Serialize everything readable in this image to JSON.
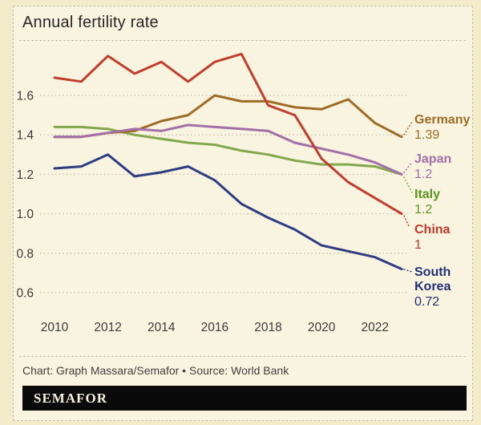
{
  "title": "Annual fertility rate",
  "credit": "Chart: Graph Massara/Semafor • Source: World Bank",
  "logo_text": "SEMAFOR",
  "colors": {
    "outer_background": "#f3ebc9",
    "card_background": "#f9f4e0",
    "border": "#c6c0a6",
    "grid": "#c3bda7",
    "title_text": "#262626",
    "muted_text": "#3f3f3f",
    "logo_bar": "#0a0a0a",
    "logo_text": "#f7f2de"
  },
  "chart_data": {
    "type": "line",
    "title": "Annual fertility rate",
    "x": [
      2010,
      2011,
      2012,
      2013,
      2014,
      2015,
      2016,
      2017,
      2018,
      2019,
      2020,
      2021,
      2022,
      2023
    ],
    "x_tick_years": [
      2010,
      2012,
      2014,
      2016,
      2018,
      2020,
      2022
    ],
    "y_ticks": [
      "1.6",
      "1.4",
      "1.2",
      "1.0",
      "0.8",
      "0.6"
    ],
    "xlim": [
      2010,
      2023
    ],
    "ylim": [
      0.55,
      1.85
    ],
    "grid": "horizontal dotted",
    "legend_position": "right-end-labels",
    "source": "World Bank",
    "series": [
      {
        "name": "Germany",
        "color": "#9e6c26",
        "label_color": "#9e6c26",
        "end_label": "1.39",
        "values": [
          1.39,
          1.39,
          1.41,
          1.42,
          1.47,
          1.5,
          1.6,
          1.57,
          1.57,
          1.54,
          1.53,
          1.58,
          1.46,
          1.39
        ]
      },
      {
        "name": "Japan",
        "color": "#a36fa8",
        "label_color": "#a36fa8",
        "end_label": "1.2",
        "values": [
          1.39,
          1.39,
          1.41,
          1.43,
          1.42,
          1.45,
          1.44,
          1.43,
          1.42,
          1.36,
          1.33,
          1.3,
          1.26,
          1.2
        ]
      },
      {
        "name": "Italy",
        "color": "#82a84c",
        "label_color": "#5d9420",
        "end_label": "1.2",
        "values": [
          1.44,
          1.44,
          1.43,
          1.4,
          1.38,
          1.36,
          1.35,
          1.32,
          1.3,
          1.27,
          1.25,
          1.25,
          1.24,
          1.2
        ]
      },
      {
        "name": "China",
        "color": "#c23e2c",
        "label_color": "#c23a28",
        "end_label": "1",
        "values": [
          1.69,
          1.67,
          1.8,
          1.71,
          1.77,
          1.67,
          1.77,
          1.81,
          1.55,
          1.5,
          1.28,
          1.16,
          1.08,
          1.0
        ]
      },
      {
        "name": "South Korea",
        "color": "#2e3c84",
        "label_color": "#222f77",
        "end_label": "0.72",
        "values": [
          1.23,
          1.24,
          1.3,
          1.19,
          1.21,
          1.24,
          1.17,
          1.05,
          0.98,
          0.92,
          0.84,
          0.81,
          0.78,
          0.72
        ]
      }
    ]
  }
}
